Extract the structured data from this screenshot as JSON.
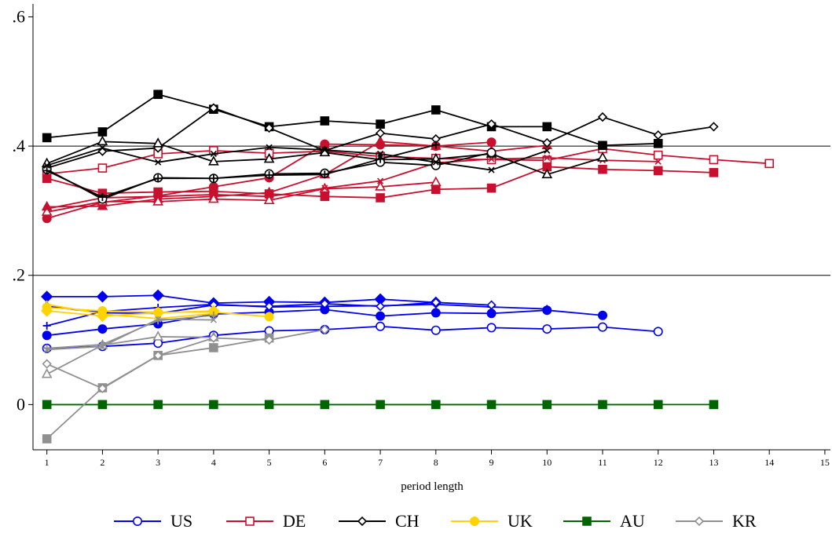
{
  "chart_data": {
    "type": "line",
    "title": "",
    "xlabel": "period length",
    "ylabel": "",
    "xlim": [
      0.75,
      15.1
    ],
    "ylim": [
      -0.07,
      0.62
    ],
    "x_ticks": [
      1,
      2,
      3,
      4,
      5,
      6,
      7,
      8,
      9,
      10,
      11,
      12,
      13,
      14,
      15
    ],
    "y_ticks": [
      {
        "value": 0,
        "label": "0"
      },
      {
        "value": 0.2,
        "label": ".2"
      },
      {
        "value": 0.4,
        "label": ".4"
      },
      {
        "value": 0.6,
        "label": ".6"
      }
    ],
    "reference_lines": [
      0.2,
      0.4
    ],
    "legend": {
      "position": "bottom"
    },
    "countries": [
      {
        "name": "US",
        "color": "#0000ee",
        "legend_marker": "circle-hollow"
      },
      {
        "name": "DE",
        "color": "#c8102e",
        "legend_marker": "square-hollow"
      },
      {
        "name": "CH",
        "color": "#000000",
        "legend_marker": "diamond-hollow"
      },
      {
        "name": "UK",
        "color": "#ffd200",
        "legend_marker": "circle-filled"
      },
      {
        "name": "AU",
        "color": "#006400",
        "legend_marker": "square-filled"
      },
      {
        "name": "KR",
        "color": "#909090",
        "legend_marker": "diamond-hollow"
      }
    ],
    "series": [
      {
        "country": "US",
        "marker": "circle-hollow",
        "x": [
          1,
          2,
          3,
          4,
          5,
          6,
          7,
          8,
          9,
          10,
          11,
          12
        ],
        "y": [
          0.087,
          0.09,
          0.095,
          0.107,
          0.114,
          0.116,
          0.121,
          0.115,
          0.119,
          0.117,
          0.12,
          0.113
        ]
      },
      {
        "country": "US",
        "marker": "circle-filled",
        "x": [
          1,
          2,
          3,
          4,
          5,
          6,
          7,
          8,
          9,
          10,
          11
        ],
        "y": [
          0.107,
          0.117,
          0.125,
          0.14,
          0.143,
          0.147,
          0.137,
          0.142,
          0.141,
          0.146,
          0.138
        ]
      },
      {
        "country": "US",
        "marker": "plus",
        "x": [
          1,
          2,
          3,
          4,
          5,
          6,
          7,
          8,
          9,
          10
        ],
        "y": [
          0.122,
          0.144,
          0.15,
          0.155,
          0.151,
          0.152,
          0.153,
          0.155,
          0.151,
          0.148
        ]
      },
      {
        "country": "US",
        "marker": "diamond-filled",
        "x": [
          1,
          2,
          3,
          4,
          5,
          6,
          7,
          8
        ],
        "y": [
          0.167,
          0.167,
          0.169,
          0.157,
          0.159,
          0.158,
          0.163,
          0.158
        ]
      },
      {
        "country": "US",
        "marker": "diamond-hollow",
        "x": [
          1,
          2,
          3,
          4,
          5,
          6,
          7,
          8,
          9
        ],
        "y": [
          0.152,
          0.142,
          0.141,
          0.154,
          0.152,
          0.156,
          0.152,
          0.158,
          0.154
        ]
      },
      {
        "country": "DE",
        "marker": "square-hollow",
        "x": [
          1,
          2,
          3,
          4,
          5,
          6,
          7,
          8,
          9,
          10,
          11,
          12,
          13,
          14
        ],
        "y": [
          0.357,
          0.366,
          0.388,
          0.393,
          0.389,
          0.392,
          0.384,
          0.381,
          0.379,
          0.378,
          0.396,
          0.386,
          0.379,
          0.373
        ]
      },
      {
        "country": "DE",
        "marker": "square-filled",
        "x": [
          1,
          2,
          3,
          4,
          5,
          6,
          7,
          8,
          9,
          10,
          11,
          12,
          13
        ],
        "y": [
          0.35,
          0.327,
          0.329,
          0.33,
          0.326,
          0.322,
          0.32,
          0.333,
          0.335,
          0.368,
          0.364,
          0.362,
          0.359
        ]
      },
      {
        "country": "DE",
        "marker": "circle-filled",
        "x": [
          1,
          2,
          3,
          4,
          5,
          6,
          7,
          8,
          9
        ],
        "y": [
          0.288,
          0.313,
          0.323,
          0.337,
          0.351,
          0.403,
          0.402,
          0.4,
          0.406
        ]
      },
      {
        "country": "DE",
        "marker": "triangle-filled",
        "x": [
          1,
          2,
          3,
          4,
          5,
          6,
          7,
          8,
          9,
          10
        ],
        "y": [
          0.306,
          0.307,
          0.318,
          0.322,
          0.328,
          0.356,
          0.407,
          0.4,
          0.392,
          0.401
        ]
      },
      {
        "country": "DE",
        "marker": "triangle-hollow",
        "x": [
          1,
          2,
          3,
          4,
          5,
          6,
          7,
          8
        ],
        "y": [
          0.298,
          0.314,
          0.314,
          0.318,
          0.316,
          0.334,
          0.337,
          0.344
        ]
      },
      {
        "country": "DE",
        "marker": "x",
        "x": [
          1,
          2,
          3,
          4,
          5,
          6,
          7,
          8,
          9,
          10,
          11,
          12
        ],
        "y": [
          0.303,
          0.32,
          0.322,
          0.325,
          0.322,
          0.335,
          0.346,
          0.374,
          0.38,
          0.382,
          0.378,
          0.376
        ]
      },
      {
        "country": "CH",
        "marker": "square-filled",
        "x": [
          1,
          2,
          3,
          4,
          5,
          6,
          7,
          8,
          9,
          10,
          11,
          12
        ],
        "y": [
          0.413,
          0.422,
          0.48,
          0.457,
          0.43,
          0.439,
          0.434,
          0.456,
          0.43,
          0.43,
          0.401,
          0.404
        ]
      },
      {
        "country": "CH",
        "marker": "diamond-hollow",
        "x": [
          1,
          2,
          3,
          4,
          5,
          6,
          7,
          8,
          9,
          10,
          11,
          12,
          13
        ],
        "y": [
          0.366,
          0.392,
          0.397,
          0.459,
          0.428,
          0.393,
          0.42,
          0.411,
          0.434,
          0.405,
          0.445,
          0.417,
          0.43
        ]
      },
      {
        "country": "CH",
        "marker": "triangle-hollow",
        "x": [
          1,
          2,
          3,
          4,
          5,
          6,
          7,
          8,
          9,
          10,
          11
        ],
        "y": [
          0.373,
          0.407,
          0.404,
          0.376,
          0.38,
          0.39,
          0.379,
          0.38,
          0.388,
          0.356,
          0.382
        ]
      },
      {
        "country": "CH",
        "marker": "circle-hollow",
        "x": [
          1,
          2,
          3,
          4,
          5,
          6,
          7,
          8,
          9
        ],
        "y": [
          0.364,
          0.318,
          0.351,
          0.35,
          0.357,
          0.358,
          0.375,
          0.37,
          0.39
        ]
      },
      {
        "country": "CH",
        "marker": "x",
        "x": [
          1,
          2,
          3,
          4,
          5,
          6,
          7,
          8,
          9,
          10
        ],
        "y": [
          0.37,
          0.397,
          0.375,
          0.388,
          0.398,
          0.394,
          0.388,
          0.375,
          0.363,
          0.393
        ]
      },
      {
        "country": "CH",
        "marker": "plus",
        "x": [
          1,
          2,
          3,
          4,
          5,
          6,
          7,
          8
        ],
        "y": [
          0.362,
          0.321,
          0.35,
          0.35,
          0.355,
          0.356,
          0.38,
          0.402
        ]
      },
      {
        "country": "UK",
        "marker": "circle-filled",
        "x": [
          1,
          2,
          3,
          4,
          5
        ],
        "y": [
          0.15,
          0.145,
          0.143,
          0.143,
          0.136
        ]
      },
      {
        "country": "UK",
        "marker": "diamond-filled",
        "x": [
          1,
          2,
          3,
          4
        ],
        "y": [
          0.145,
          0.137,
          0.142,
          0.145
        ]
      },
      {
        "country": "UK",
        "marker": "plus",
        "x": [
          1,
          2,
          3,
          4
        ],
        "y": [
          0.155,
          0.14,
          0.133,
          0.141
        ]
      },
      {
        "country": "AU",
        "marker": "square-filled",
        "x": [
          1,
          2,
          3,
          4,
          5,
          6,
          7,
          8,
          9,
          10,
          11,
          12,
          13
        ],
        "y": [
          0,
          0,
          0,
          0,
          0,
          0,
          0,
          0,
          0,
          0,
          0,
          0,
          0
        ]
      },
      {
        "country": "AU",
        "marker": "plus",
        "x": [
          1,
          2,
          3,
          4,
          5,
          6,
          7,
          8,
          9,
          10,
          11,
          12
        ],
        "y": [
          0,
          0,
          0,
          0,
          0,
          0,
          0,
          0,
          0,
          0,
          0,
          0
        ]
      },
      {
        "country": "KR",
        "marker": "square-filled",
        "x": [
          1,
          2,
          3,
          4,
          5
        ],
        "y": [
          -0.053,
          0.026,
          0.076,
          0.088,
          0.103
        ]
      },
      {
        "country": "KR",
        "marker": "triangle-hollow",
        "x": [
          1,
          2,
          3,
          4
        ],
        "y": [
          0.047,
          0.092,
          0.105,
          0.104
        ]
      },
      {
        "country": "KR",
        "marker": "diamond-hollow",
        "x": [
          1,
          2,
          3,
          4,
          5,
          6
        ],
        "y": [
          0.063,
          0.025,
          0.076,
          0.103,
          0.1,
          0.116
        ]
      },
      {
        "country": "KR",
        "marker": "plus",
        "x": [
          1,
          2,
          3,
          4
        ],
        "y": [
          0.087,
          0.093,
          0.13,
          0.138
        ]
      },
      {
        "country": "KR",
        "marker": "x",
        "x": [
          1,
          2,
          3,
          4
        ],
        "y": [
          0.085,
          0.09,
          0.132,
          0.131
        ]
      }
    ]
  }
}
